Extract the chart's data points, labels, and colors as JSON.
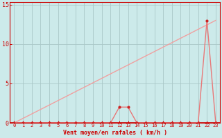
{
  "x": [
    0,
    1,
    2,
    3,
    4,
    5,
    6,
    7,
    8,
    9,
    10,
    11,
    12,
    13,
    14,
    15,
    16,
    17,
    18,
    19,
    20,
    21,
    22,
    23
  ],
  "y_hours": [
    0,
    0,
    0,
    0,
    0,
    0,
    0,
    0,
    0,
    0,
    0,
    0,
    2,
    2,
    0,
    0,
    0,
    0,
    0,
    0,
    0,
    0,
    13,
    0
  ],
  "y_cumul": [
    0,
    0.57,
    1.13,
    1.7,
    2.26,
    2.83,
    3.39,
    3.96,
    4.52,
    5.09,
    5.65,
    6.22,
    6.78,
    7.35,
    7.91,
    8.48,
    9.04,
    9.61,
    10.17,
    10.74,
    11.3,
    11.87,
    12.43,
    13.0
  ],
  "background_color": "#cceaea",
  "grid_color": "#aac8c8",
  "line_color_hours": "#e87878",
  "line_color_cumul": "#f0a0a0",
  "marker_color": "#cc2222",
  "axis_color": "#cc0000",
  "tick_label_color": "#cc0000",
  "xlabel": "Vent moyen/en rafales ( km/h )",
  "xlabel_color": "#cc0000",
  "ylim": [
    0,
    15
  ],
  "xlim": [
    -0.5,
    23.5
  ],
  "yticks": [
    0,
    5,
    10,
    15
  ],
  "xticks": [
    0,
    1,
    2,
    3,
    4,
    5,
    6,
    7,
    8,
    9,
    10,
    11,
    12,
    13,
    14,
    15,
    16,
    17,
    18,
    19,
    20,
    21,
    22,
    23
  ]
}
